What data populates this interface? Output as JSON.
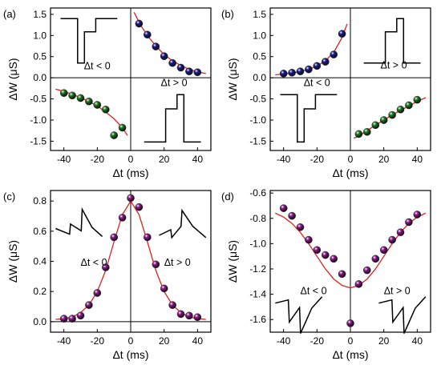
{
  "chart_data": [
    {
      "type": "scatter",
      "panel_label": "(a)",
      "xlabel": "Δt (ms)",
      "ylabel": "ΔW (μS)",
      "xlim": [
        -48,
        48
      ],
      "ylim": [
        -1.72,
        1.65
      ],
      "xticks": [
        -40,
        -20,
        0,
        20,
        40
      ],
      "yticks": [
        -1.5,
        -1.0,
        -0.5,
        0.0,
        0.5,
        1.0,
        1.5
      ],
      "ytick_labels": [
        "-1.5",
        "-1.0",
        "-0.5",
        "0.0",
        "0.5",
        "1.0",
        "1.5"
      ],
      "zero_lines": true,
      "series": [
        {
          "color": "#1a1a8c",
          "x": [
            5,
            10,
            15,
            20,
            25,
            30,
            35,
            40
          ],
          "y": [
            1.28,
            1.02,
            0.74,
            0.51,
            0.35,
            0.24,
            0.15,
            0.13
          ]
        },
        {
          "color": "#1f7a1f",
          "x": [
            -40,
            -35,
            -30,
            -25,
            -20,
            -15,
            -10,
            -5
          ],
          "y": [
            -0.36,
            -0.42,
            -0.48,
            -0.56,
            -0.64,
            -0.75,
            -1.36,
            -1.18
          ]
        }
      ],
      "fits": [
        {
          "x": [
            2,
            6,
            10,
            15,
            20,
            25,
            30,
            35,
            40,
            45
          ],
          "y": [
            1.55,
            1.24,
            1.0,
            0.75,
            0.55,
            0.4,
            0.29,
            0.2,
            0.14,
            0.1
          ]
        },
        {
          "x": [
            -45,
            -40,
            -35,
            -30,
            -25,
            -20,
            -15,
            -10,
            -5,
            -2
          ],
          "y": [
            -0.27,
            -0.32,
            -0.39,
            -0.47,
            -0.56,
            -0.67,
            -0.81,
            -0.97,
            -1.18,
            -1.36
          ]
        }
      ],
      "annotations": [
        {
          "text": "Δt < 0",
          "x": -28,
          "y": 0.2
        },
        {
          "text": "Δt > 0",
          "x": 18,
          "y": -0.2
        }
      ],
      "pulse_icons": [
        {
          "shape": "ltd",
          "x0": -42,
          "x1": -8,
          "y0": 1.4,
          "y1": 0.35
        },
        {
          "shape": "ltp",
          "x0": 8,
          "x1": 42,
          "y0": -1.52,
          "y1": -0.4
        }
      ]
    },
    {
      "type": "scatter",
      "panel_label": "(b)",
      "xlabel": "Δt (ms)",
      "ylabel": "ΔW (μS)",
      "xlim": [
        -48,
        48
      ],
      "ylim": [
        -1.72,
        1.65
      ],
      "xticks": [
        -40,
        -20,
        0,
        20,
        40
      ],
      "yticks": [
        -1.5,
        -1.0,
        -0.5,
        0.0,
        0.5,
        1.0,
        1.5
      ],
      "ytick_labels": [
        "-1.5",
        "-1.0",
        "-0.5",
        "0.0",
        "0.5",
        "1.0",
        "1.5"
      ],
      "zero_lines": true,
      "series": [
        {
          "color": "#1a1a8c",
          "x": [
            -40,
            -35,
            -30,
            -25,
            -20,
            -15,
            -10,
            -5
          ],
          "y": [
            0.1,
            0.12,
            0.15,
            0.2,
            0.28,
            0.38,
            0.55,
            1.04
          ]
        },
        {
          "color": "#1f7a1f",
          "x": [
            5,
            10,
            15,
            20,
            25,
            30,
            35,
            40
          ],
          "y": [
            -1.33,
            -1.28,
            -1.12,
            -1.0,
            -0.88,
            -0.75,
            -0.65,
            -0.52
          ]
        }
      ],
      "fits": [
        {
          "x": [
            -45,
            -40,
            -35,
            -30,
            -25,
            -20,
            -15,
            -10,
            -5,
            -2
          ],
          "y": [
            0.07,
            0.09,
            0.11,
            0.15,
            0.2,
            0.28,
            0.4,
            0.6,
            0.95,
            1.27
          ]
        },
        {
          "x": [
            2,
            5,
            10,
            15,
            20,
            25,
            30,
            35,
            40,
            45
          ],
          "y": [
            -1.43,
            -1.38,
            -1.25,
            -1.12,
            -1.0,
            -0.88,
            -0.77,
            -0.67,
            -0.56,
            -0.47
          ]
        }
      ],
      "annotations": [
        {
          "text": "Δt < 0",
          "x": -28,
          "y": -0.2
        },
        {
          "text": "Δt > 0",
          "x": 18,
          "y": 0.22
        }
      ],
      "pulse_icons": [
        {
          "shape": "ltp",
          "x0": 8,
          "x1": 42,
          "y0": 1.4,
          "y1": 0.35
        },
        {
          "shape": "ltd",
          "x0": -42,
          "x1": -8,
          "y0": -1.52,
          "y1": -0.4
        }
      ]
    },
    {
      "type": "scatter",
      "panel_label": "(c)",
      "xlabel": "Δt (ms)",
      "ylabel": "ΔW (μS)",
      "xlim": [
        -48,
        48
      ],
      "ylim": [
        -0.07,
        0.87
      ],
      "xticks": [
        -40,
        -20,
        0,
        20,
        40
      ],
      "yticks": [
        0.0,
        0.2,
        0.4,
        0.6,
        0.8
      ],
      "ytick_labels": [
        "0.0",
        "0.2",
        "0.4",
        "0.6",
        "0.8"
      ],
      "zero_lines": true,
      "series": [
        {
          "color": "#8a1a8a",
          "x": [
            -40,
            -35,
            -30,
            -25,
            -20,
            -15,
            -10,
            -5,
            0,
            5,
            10,
            15,
            20,
            25,
            30,
            35,
            40
          ],
          "y": [
            0.02,
            0.02,
            0.04,
            0.11,
            0.19,
            0.36,
            0.56,
            0.69,
            0.82,
            0.76,
            0.56,
            0.38,
            0.22,
            0.11,
            0.05,
            0.04,
            0.03
          ]
        }
      ],
      "fits": [
        {
          "x": [
            -45,
            -40,
            -35,
            -30,
            -25,
            -20,
            -15,
            -10,
            -5,
            0,
            5,
            10,
            15,
            20,
            25,
            30,
            35,
            40,
            45
          ],
          "y": [
            0.015,
            0.02,
            0.03,
            0.06,
            0.11,
            0.2,
            0.34,
            0.53,
            0.71,
            0.8,
            0.71,
            0.53,
            0.34,
            0.2,
            0.11,
            0.06,
            0.03,
            0.02,
            0.015
          ]
        }
      ],
      "annotations": [
        {
          "text": "Δt < 0",
          "x": -30,
          "y": 0.37
        },
        {
          "text": "Δt > 0",
          "x": 20,
          "y": 0.37
        }
      ],
      "pulse_icons": [
        {
          "shape": "double_ltd",
          "x0": -45,
          "x1": -17,
          "y0": 0.55,
          "y1": 0.7
        },
        {
          "shape": "double_ltp",
          "x0": 17,
          "x1": 45,
          "y0": 0.55,
          "y1": 0.7
        }
      ]
    },
    {
      "type": "scatter",
      "panel_label": "(d)",
      "xlabel": "Δt (ms)",
      "ylabel": "ΔW (μS)",
      "xlim": [
        -48,
        48
      ],
      "ylim": [
        -1.7,
        -0.58
      ],
      "xticks": [
        -40,
        -20,
        0,
        20,
        40
      ],
      "yticks": [
        -1.6,
        -1.4,
        -1.2,
        -1.0,
        -0.8,
        -0.6
      ],
      "ytick_labels": [
        "-1.6",
        "-1.4",
        "-1.2",
        "-1.0",
        "-0.8",
        "-0.6"
      ],
      "zero_lines": false,
      "series": [
        {
          "color": "#8a1a8a",
          "x": [
            -40,
            -35,
            -30,
            -25,
            -20,
            -15,
            -10,
            -5,
            0,
            5,
            10,
            15,
            20,
            25,
            30,
            35,
            40
          ],
          "y": [
            -0.72,
            -0.78,
            -0.87,
            -0.97,
            -1.05,
            -1.09,
            -1.12,
            -1.24,
            -1.63,
            -1.32,
            -1.21,
            -1.12,
            -1.05,
            -0.97,
            -0.91,
            -0.83,
            -0.77
          ]
        }
      ],
      "fits": [
        {
          "x": [
            -45,
            -40,
            -35,
            -30,
            -25,
            -20,
            -15,
            -10,
            -5,
            0,
            5,
            10,
            15,
            20,
            25,
            30,
            35,
            40,
            45
          ],
          "y": [
            -0.76,
            -0.79,
            -0.84,
            -0.91,
            -1.0,
            -1.1,
            -1.2,
            -1.28,
            -1.33,
            -1.35,
            -1.33,
            -1.28,
            -1.2,
            -1.1,
            -1.0,
            -0.91,
            -0.84,
            -0.79,
            -0.76
          ]
        }
      ],
      "annotations": [
        {
          "text": "Δt < 0",
          "x": -30,
          "y": -1.4
        },
        {
          "text": "Δt > 0",
          "x": 20,
          "y": -1.4
        }
      ],
      "pulse_icons": [
        {
          "shape": "double_down",
          "x0": -45,
          "x1": -17,
          "y0": -1.57,
          "y1": -1.47
        },
        {
          "shape": "double_down",
          "x0": 17,
          "x1": 45,
          "y0": -1.57,
          "y1": -1.47
        }
      ]
    }
  ]
}
